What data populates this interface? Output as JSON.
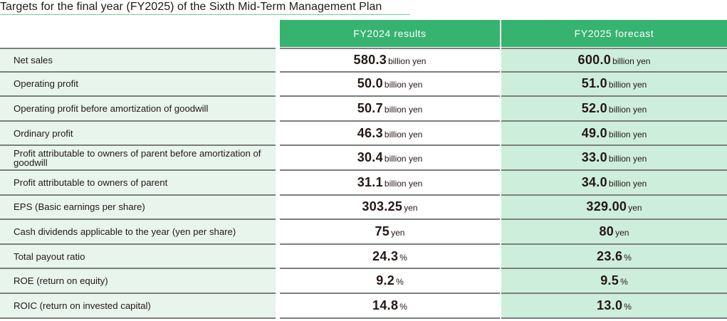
{
  "title": "Targets for the final year (FY2025) of the Sixth Mid-Term Management Plan",
  "colors": {
    "header_green": "#35b36f",
    "label_bg": "#e7f5ed",
    "forecast_bg": "#cdeedb",
    "title_underline": "#6fcf9b",
    "row_border": "#7b7f7c"
  },
  "columns": [
    "",
    "FY2024 results",
    "FY2025 forecast"
  ],
  "rows": [
    {
      "label": "Net sales",
      "fy2024": {
        "value": "580.3",
        "unit": "billion yen"
      },
      "fy2025": {
        "value": "600.0",
        "unit": "billion yen"
      }
    },
    {
      "label": "Operating profit",
      "fy2024": {
        "value": "50.0",
        "unit": "billion yen"
      },
      "fy2025": {
        "value": "51.0",
        "unit": "billion yen"
      }
    },
    {
      "label": "Operating profit before amortization of goodwill",
      "fy2024": {
        "value": "50.7",
        "unit": "billion yen"
      },
      "fy2025": {
        "value": "52.0",
        "unit": "billion yen"
      }
    },
    {
      "label": "Ordinary profit",
      "fy2024": {
        "value": "46.3",
        "unit": "billion yen"
      },
      "fy2025": {
        "value": "49.0",
        "unit": "billion yen"
      }
    },
    {
      "label": "Profit attributable to owners of parent before amortization of goodwill",
      "fy2024": {
        "value": "30.4",
        "unit": "billion yen"
      },
      "fy2025": {
        "value": "33.0",
        "unit": "billion yen"
      }
    },
    {
      "label": "Profit attributable to owners of parent",
      "fy2024": {
        "value": "31.1",
        "unit": "billion yen"
      },
      "fy2025": {
        "value": "34.0",
        "unit": "billion yen"
      }
    },
    {
      "label": "EPS (Basic earnings per share)",
      "fy2024": {
        "value": "303.25",
        "unit": "yen"
      },
      "fy2025": {
        "value": "329.00",
        "unit": "yen"
      }
    },
    {
      "label": "Cash dividends applicable to the year (yen per share)",
      "fy2024": {
        "value": "75",
        "unit": "yen"
      },
      "fy2025": {
        "value": "80",
        "unit": "yen"
      }
    },
    {
      "label": "Total payout ratio",
      "fy2024": {
        "value": "24.3",
        "unit": "%"
      },
      "fy2025": {
        "value": "23.6",
        "unit": "%"
      }
    },
    {
      "label": "ROE (return on equity)",
      "fy2024": {
        "value": "9.2",
        "unit": "%"
      },
      "fy2025": {
        "value": "9.5",
        "unit": "%"
      }
    },
    {
      "label": "ROIC (return on invested capital)",
      "fy2024": {
        "value": "14.8",
        "unit": "%"
      },
      "fy2025": {
        "value": "13.0",
        "unit": "%"
      }
    }
  ]
}
